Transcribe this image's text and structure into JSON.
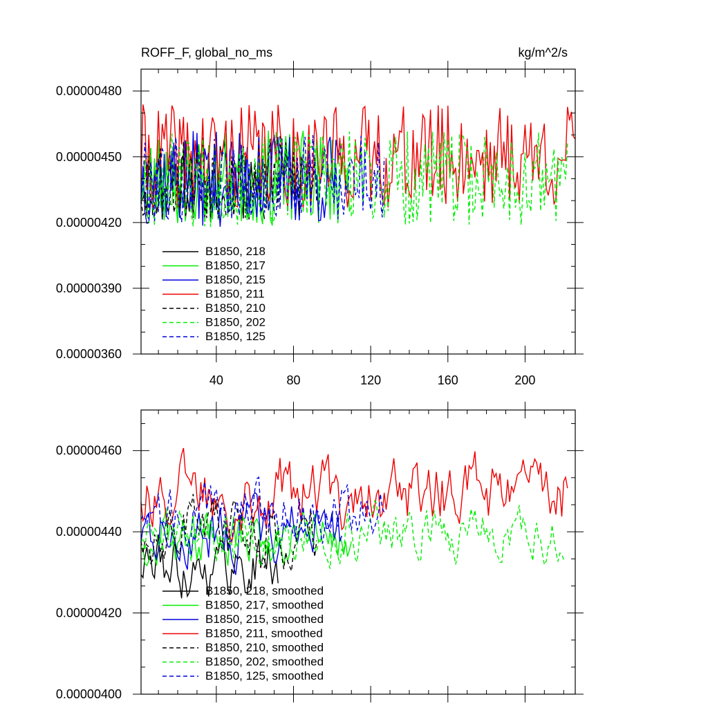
{
  "chart_data": [
    {
      "type": "line",
      "title": "ROFF_F, global_no_ms",
      "units": "kg/m^2/s",
      "xlim": [
        1,
        226
      ],
      "ylim": [
        3.6e-06,
        4.9e-06
      ],
      "x_ticks": [
        40,
        80,
        120,
        160,
        200
      ],
      "x_tick_labels": [
        "40",
        "80",
        "120",
        "160",
        "200"
      ],
      "y_ticks": [
        3.6e-06,
        3.9e-06,
        4.2e-06,
        4.5e-06,
        4.8e-06
      ],
      "y_tick_labels": [
        "0.00000360",
        "0.00000390",
        "0.00000420",
        "0.00000450",
        "0.00000480"
      ],
      "legend_position": "bottom-left",
      "series": [
        {
          "name": "B1850, 218",
          "color": "#000000",
          "dash": "solid",
          "length": 65,
          "seed": 11,
          "mean": 4.4e-06,
          "amplitude": 2e-07
        },
        {
          "name": "B1850, 217",
          "color": "#00ee00",
          "dash": "solid",
          "length": 110,
          "seed": 23,
          "mean": 4.4e-06,
          "amplitude": 2.2e-07
        },
        {
          "name": "B1850, 215",
          "color": "#0000dd",
          "dash": "solid",
          "length": 105,
          "seed": 37,
          "mean": 4.4e-06,
          "amplitude": 2.2e-07
        },
        {
          "name": "B1850, 211",
          "color": "#ee0000",
          "dash": "solid",
          "length": 226,
          "seed": 41,
          "mean": 4.5e-06,
          "amplitude": 2.4e-07
        },
        {
          "name": "B1850, 210",
          "color": "#000000",
          "dash": "dashed",
          "length": 92,
          "seed": 53,
          "mean": 4.4e-06,
          "amplitude": 2e-07
        },
        {
          "name": "B1850, 202",
          "color": "#00ee00",
          "dash": "dashed",
          "length": 222,
          "seed": 67,
          "mean": 4.4e-06,
          "amplitude": 2.2e-07
        },
        {
          "name": "B1850, 125",
          "color": "#0000dd",
          "dash": "dashed",
          "length": 127,
          "seed": 79,
          "mean": 4.4e-06,
          "amplitude": 2e-07
        }
      ]
    },
    {
      "type": "line",
      "title": "",
      "xlim": [
        1,
        226
      ],
      "ylim": [
        4e-06,
        4.7e-06
      ],
      "x_ticks": [
        40,
        80,
        120,
        160,
        200
      ],
      "y_ticks": [
        4e-06,
        4.2e-06,
        4.4e-06,
        4.6e-06
      ],
      "y_tick_labels": [
        "0.00000400",
        "0.00000420",
        "0.00000440",
        "0.00000460"
      ],
      "legend_position": "bottom-left",
      "series": [
        {
          "name": "B1850, 218, smoothed",
          "color": "#000000",
          "dash": "solid",
          "length": 72,
          "seed": 111,
          "mean": 4.32e-06,
          "amplitude": 8e-08
        },
        {
          "name": "B1850, 217, smoothed",
          "color": "#00ee00",
          "dash": "solid",
          "length": 110,
          "seed": 123,
          "mean": 4.38e-06,
          "amplitude": 7e-08
        },
        {
          "name": "B1850, 215, smoothed",
          "color": "#0000dd",
          "dash": "solid",
          "length": 105,
          "seed": 137,
          "mean": 4.4e-06,
          "amplitude": 8e-08
        },
        {
          "name": "B1850, 211, smoothed",
          "color": "#ee0000",
          "dash": "solid",
          "length": 222,
          "seed": 141,
          "mean": 4.5e-06,
          "amplitude": 9e-08
        },
        {
          "name": "B1850, 210, smoothed",
          "color": "#000000",
          "dash": "dashed",
          "length": 92,
          "seed": 153,
          "mean": 4.4e-06,
          "amplitude": 8e-08
        },
        {
          "name": "B1850, 202, smoothed",
          "color": "#00ee00",
          "dash": "dashed",
          "length": 220,
          "seed": 167,
          "mean": 4.4e-06,
          "amplitude": 7e-08
        },
        {
          "name": "B1850, 125, smoothed",
          "color": "#0000dd",
          "dash": "dashed",
          "length": 127,
          "seed": 179,
          "mean": 4.45e-06,
          "amplitude": 7e-08
        }
      ]
    }
  ]
}
